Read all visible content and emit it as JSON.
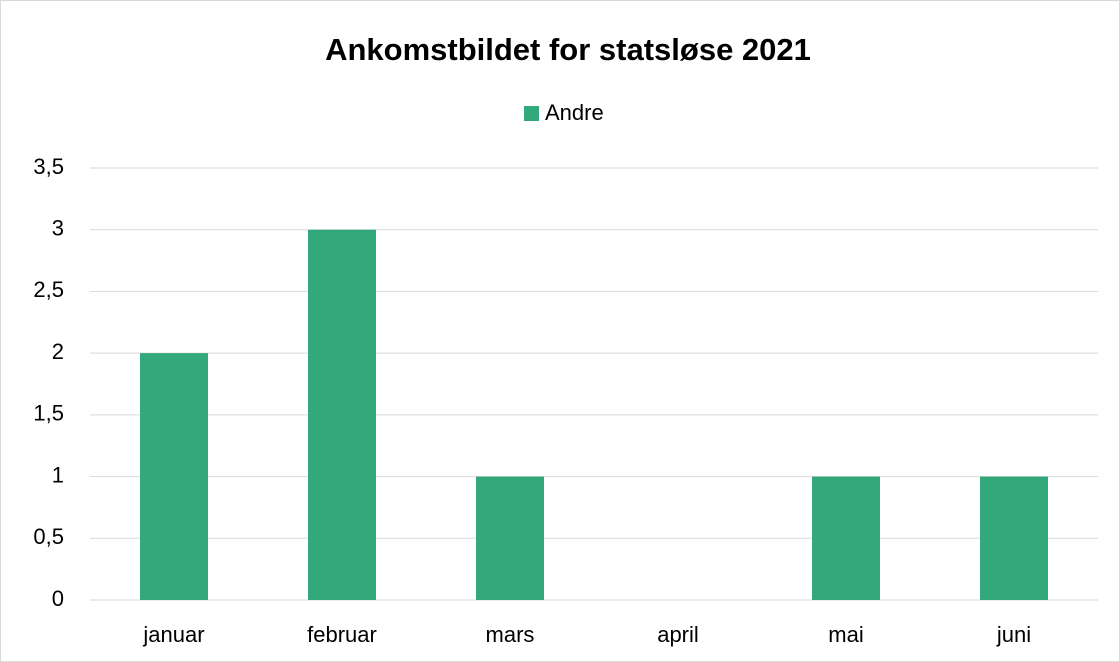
{
  "chart_data": {
    "type": "bar",
    "title": "Ankomstbildet for statsløse 2021",
    "categories": [
      "januar",
      "februar",
      "mars",
      "april",
      "mai",
      "juni"
    ],
    "series": [
      {
        "name": "Andre",
        "color": "#33a87a",
        "values": [
          2,
          3,
          1,
          0,
          1,
          1
        ]
      }
    ],
    "ylim": [
      0,
      3.5
    ],
    "yticks": [
      0,
      {
        "value": 0.5,
        "label": "0,5"
      },
      1,
      {
        "value": 1.5,
        "label": "1,5"
      },
      2,
      {
        "value": 2.5,
        "label": "2,5"
      },
      3,
      {
        "value": 3.5,
        "label": "3,5"
      }
    ],
    "grid": true,
    "legend": "top"
  }
}
